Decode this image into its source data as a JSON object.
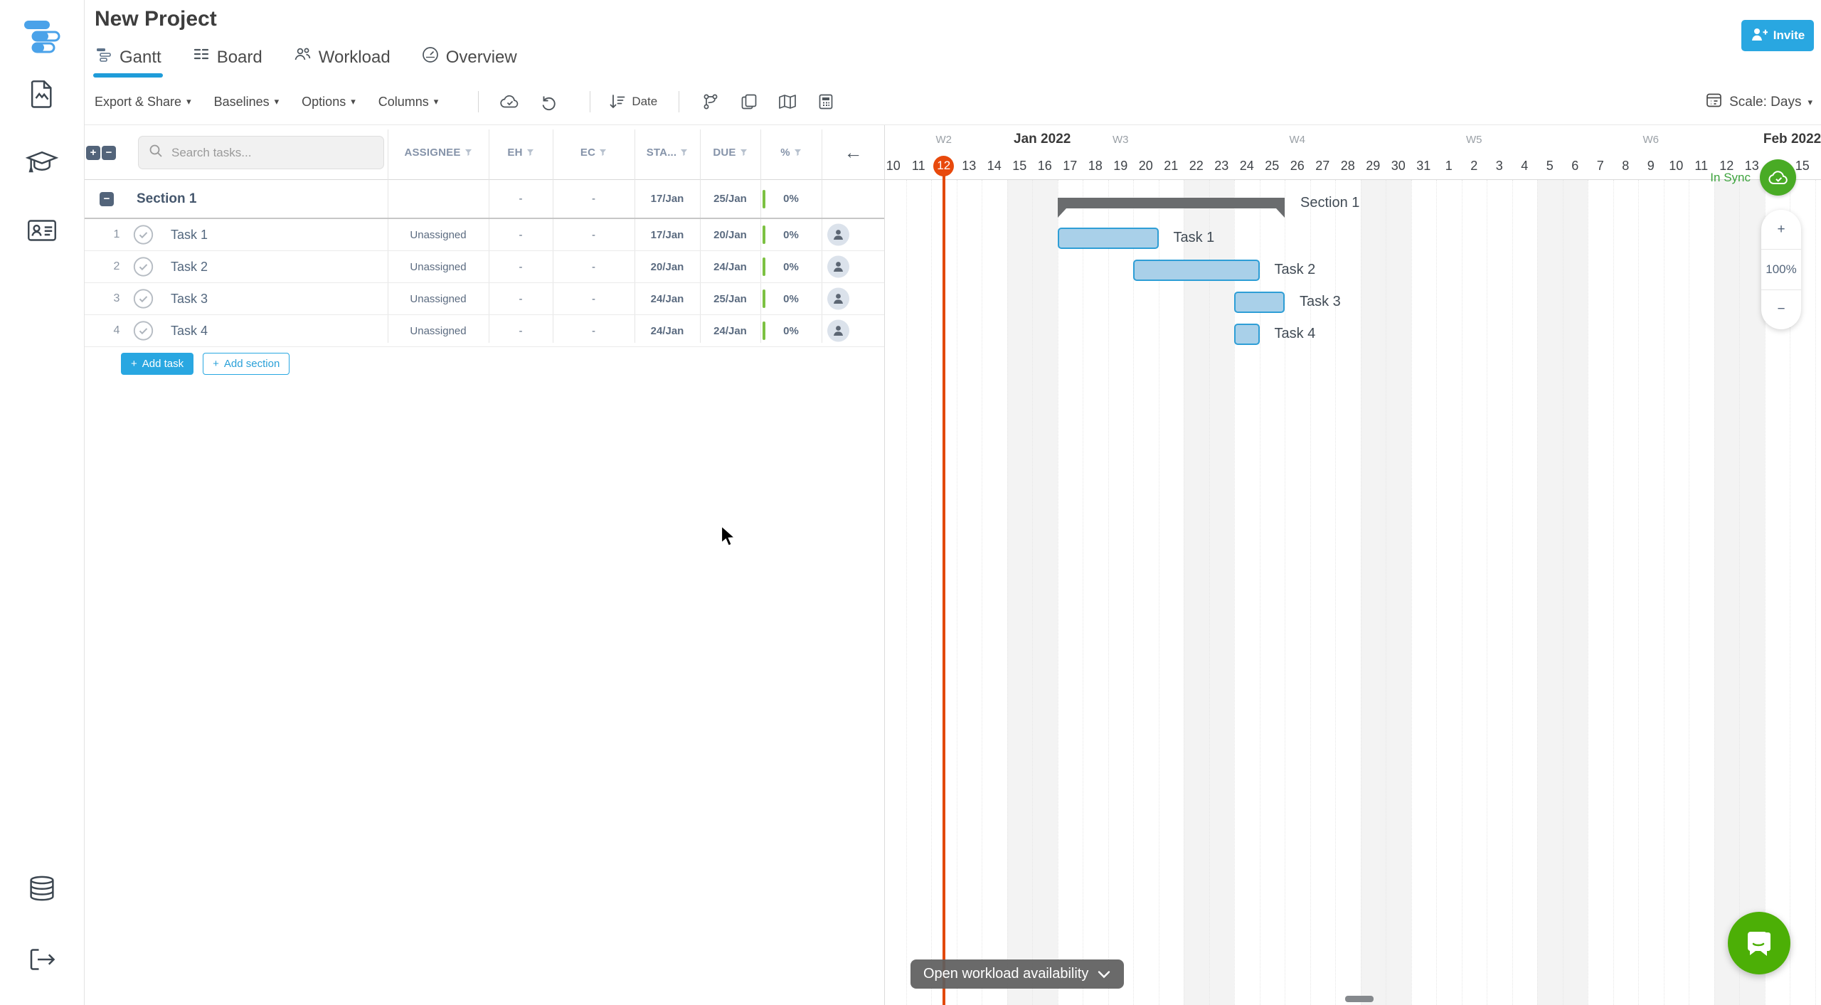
{
  "icons": {
    "caret_down": "▾",
    "arrow_left": "←",
    "plus": "+",
    "minus": "−"
  },
  "sidebar": {
    "items": [
      "document-icon",
      "education-icon",
      "contact-card-icon",
      "database-icon",
      "logout-icon"
    ]
  },
  "header": {
    "title": "New Project",
    "tabs": [
      {
        "label": "Gantt",
        "active": true
      },
      {
        "label": "Board",
        "active": false
      },
      {
        "label": "Workload",
        "active": false
      },
      {
        "label": "Overview",
        "active": false
      }
    ],
    "toolbar": {
      "menus": [
        "Export & Share",
        "Baselines",
        "Options",
        "Columns"
      ],
      "date_label": "Date",
      "scale_label": "Scale: Days"
    },
    "invite_label": "Invite"
  },
  "table": {
    "search_placeholder": "Search tasks...",
    "columns": [
      "ASSIGNEE",
      "EH",
      "EC",
      "STA...",
      "DUE",
      "%"
    ],
    "section": {
      "name": "Section 1",
      "start": "17/Jan",
      "due": "25/Jan",
      "progress": "0%"
    },
    "rows": [
      {
        "num": "1",
        "name": "Task 1",
        "assignee": "Unassigned",
        "eh": "-",
        "ec": "-",
        "start": "17/Jan",
        "due": "20/Jan",
        "progress": "0%"
      },
      {
        "num": "2",
        "name": "Task 2",
        "assignee": "Unassigned",
        "eh": "-",
        "ec": "-",
        "start": "20/Jan",
        "due": "24/Jan",
        "progress": "0%"
      },
      {
        "num": "3",
        "name": "Task 3",
        "assignee": "Unassigned",
        "eh": "-",
        "ec": "-",
        "start": "24/Jan",
        "due": "25/Jan",
        "progress": "0%"
      },
      {
        "num": "4",
        "name": "Task 4",
        "assignee": "Unassigned",
        "eh": "-",
        "ec": "-",
        "start": "24/Jan",
        "due": "24/Jan",
        "progress": "0%"
      }
    ],
    "section_eh": "-",
    "section_ec": "-",
    "add_task_label": "Add task",
    "add_section_label": "Add section"
  },
  "chart_data": {
    "type": "gantt",
    "months": [
      {
        "label": "Jan 2022",
        "center_idx": 6.4
      },
      {
        "label": "Feb 2022",
        "center_idx": 36.1
      }
    ],
    "weeks": [
      {
        "label": "W2",
        "center_idx": 2.5
      },
      {
        "label": "W3",
        "center_idx": 9.5
      },
      {
        "label": "W4",
        "center_idx": 16.5
      },
      {
        "label": "W5",
        "center_idx": 23.5
      },
      {
        "label": "W6",
        "center_idx": 30.5
      }
    ],
    "days": [
      "10",
      "11",
      "12",
      "13",
      "14",
      "15",
      "16",
      "17",
      "18",
      "19",
      "20",
      "21",
      "22",
      "23",
      "24",
      "25",
      "26",
      "27",
      "28",
      "29",
      "30",
      "31",
      "1",
      "2",
      "3",
      "4",
      "5",
      "6",
      "7",
      "8",
      "9",
      "10",
      "11",
      "12",
      "13",
      "14",
      "15"
    ],
    "today_idx": 2,
    "weekend_bands": [
      [
        5,
        7
      ],
      [
        12,
        14
      ],
      [
        19,
        21
      ],
      [
        26,
        28
      ],
      [
        33,
        35
      ]
    ],
    "section_bar": {
      "label": "Section 1",
      "start_idx": 7,
      "end_idx": 16
    },
    "bars": [
      {
        "label": "Task 1",
        "start_idx": 7,
        "end_idx": 11,
        "row": 1
      },
      {
        "label": "Task 2",
        "start_idx": 10,
        "end_idx": 15,
        "row": 2
      },
      {
        "label": "Task 3",
        "start_idx": 14,
        "end_idx": 16,
        "row": 3
      },
      {
        "label": "Task 4",
        "start_idx": 14,
        "end_idx": 15,
        "row": 4
      }
    ]
  },
  "overlays": {
    "sync_label": "In Sync",
    "zoom": {
      "zoom_in": "+",
      "value": "100%",
      "zoom_out": "−"
    },
    "workload_label": "Open workload availability"
  },
  "colors": {
    "accent_blue": "#29a7e1",
    "bar_fill": "#a9d0e9",
    "bar_border": "#2e9ed6",
    "today_red": "#e8490c",
    "sync_green": "#49ab25",
    "progress_green": "#7cc142",
    "section_gray": "#6a6c6e",
    "chat_green": "#4caf06"
  }
}
